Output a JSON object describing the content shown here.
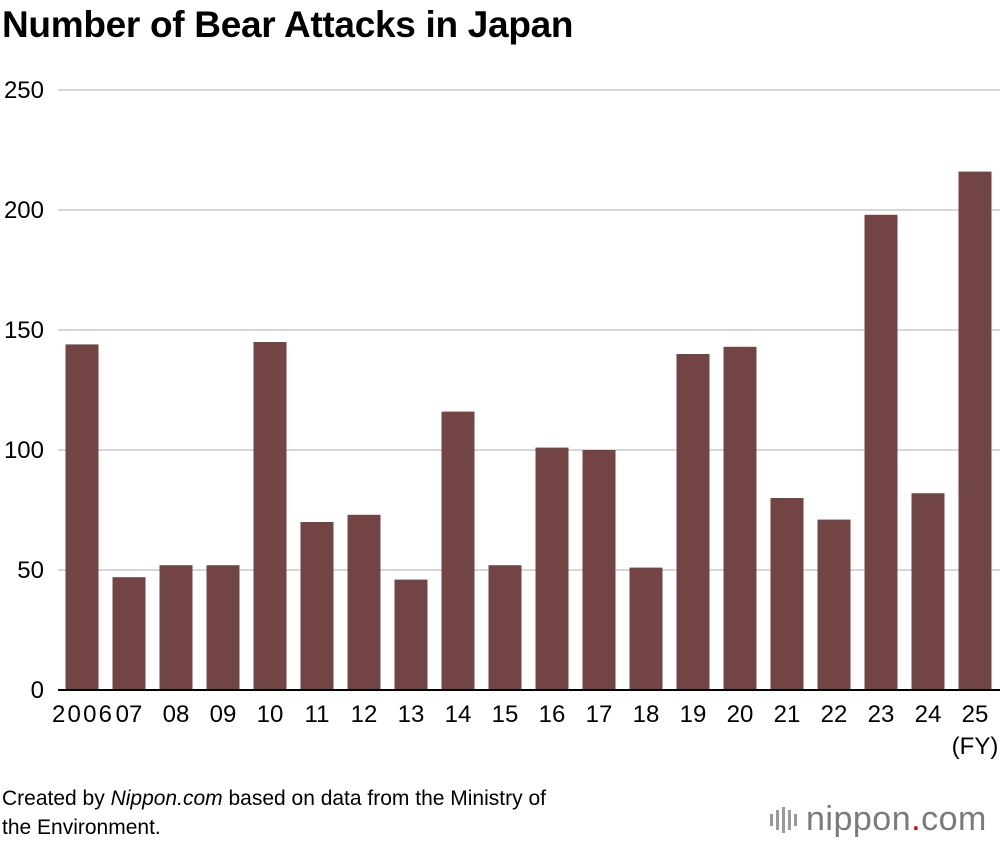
{
  "chart_data": {
    "type": "bar",
    "title": "Number of Bear Attacks in Japan",
    "categories": [
      "2006",
      "07",
      "08",
      "09",
      "10",
      "11",
      "12",
      "13",
      "14",
      "15",
      "16",
      "17",
      "18",
      "19",
      "20",
      "21",
      "22",
      "23",
      "24",
      "25"
    ],
    "values": [
      144,
      47,
      52,
      52,
      145,
      70,
      73,
      46,
      116,
      52,
      101,
      100,
      51,
      140,
      143,
      80,
      71,
      198,
      82,
      216
    ],
    "x_unit": "(FY)",
    "ylim": [
      0,
      250
    ],
    "yticks": [
      0,
      50,
      100,
      150,
      200,
      250
    ],
    "grid": true,
    "bar_color": "#724444"
  },
  "source": {
    "prefix": "Created by ",
    "site": "Nippon.com",
    "line1_rest": " based on data from the Ministry of",
    "line2": "the Environment."
  },
  "logo": {
    "name": "nippon",
    "dot": ".",
    "suffix": "com"
  }
}
